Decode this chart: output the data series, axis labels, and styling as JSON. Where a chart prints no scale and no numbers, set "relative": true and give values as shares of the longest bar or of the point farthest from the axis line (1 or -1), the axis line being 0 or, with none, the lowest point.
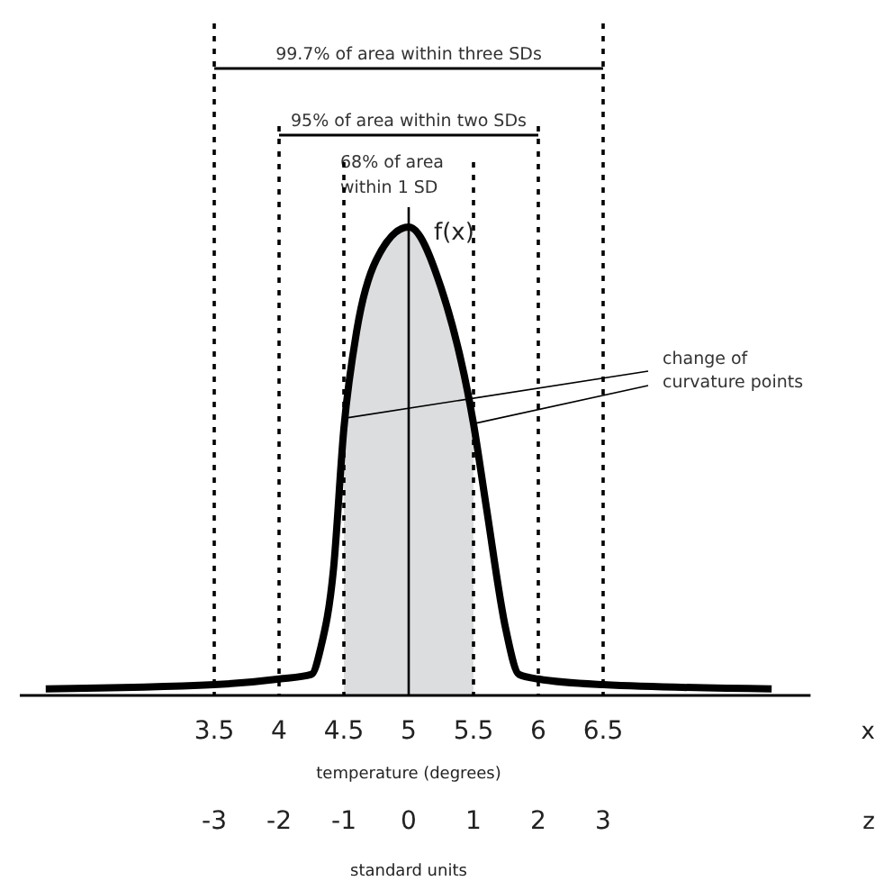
{
  "chart_data": {
    "type": "line",
    "relative": true,
    "xlabel": "temperature (degrees)",
    "x2label": "standard units",
    "xlim": [
      2,
      8.1
    ],
    "xticks": [
      3.5,
      4,
      4.5,
      5,
      5.5,
      6,
      6.5
    ],
    "x2lim": [
      -6,
      6.2
    ],
    "x2ticks": [
      -3,
      -2,
      -1,
      0,
      1,
      2,
      3
    ],
    "series": [
      {
        "color": "#000000",
        "x": [
          2.2,
          3.5,
          4,
          4.25,
          4.32,
          4.42,
          4.5,
          4.6,
          4.75,
          5,
          5.25,
          5.5,
          5.6,
          5.75,
          5.85,
          6,
          6.5,
          7.8
        ],
        "values": [
          0.014,
          0.023,
          0.035,
          0.045,
          0.1,
          0.27,
          0.57,
          0.78,
          0.93,
          1,
          0.87,
          0.58,
          0.4,
          0.14,
          0.045,
          0.035,
          0.023,
          0.014
        ]
      }
    ],
    "ref_lines": [
      {
        "axis": "x",
        "value": 3.5,
        "line_style": "dotted"
      },
      {
        "axis": "x",
        "value": 4,
        "line_style": "dotted"
      },
      {
        "axis": "x",
        "value": 4.5,
        "line_style": "dotted"
      },
      {
        "axis": "x",
        "value": 5,
        "label": "f(x)",
        "line_style": "solid"
      },
      {
        "axis": "x",
        "value": 5.5,
        "line_style": "dotted"
      },
      {
        "axis": "x",
        "value": 6,
        "line_style": "dotted"
      },
      {
        "axis": "x",
        "value": 6.5,
        "line_style": "dotted"
      }
    ],
    "bands": [
      {
        "axis": "x",
        "from": 4.5,
        "to": 5.5,
        "label": "68% of area\nwithin 1 SD",
        "color": "#dcdddf"
      }
    ],
    "annotations": [
      "99.7% of area within three SDs",
      "95% of area within two SDs",
      {
        "text": "change of curvature points",
        "x": 5.5,
        "y": 0.58
      },
      "x",
      "z"
    ],
    "marker": "none",
    "line_style": "solid"
  }
}
